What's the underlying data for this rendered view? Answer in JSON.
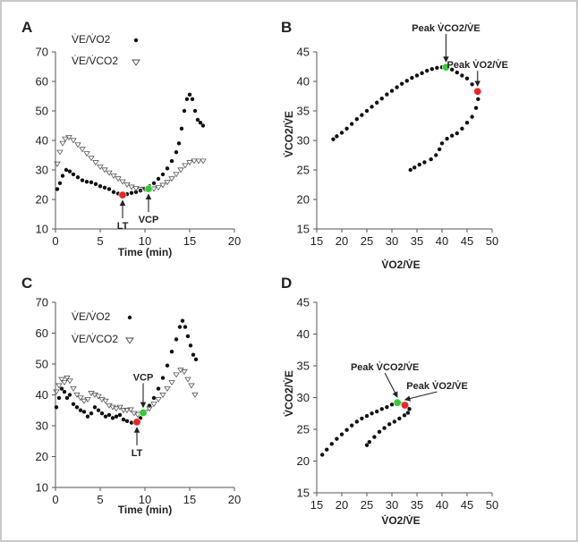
{
  "chart_data": [
    {
      "panel": "A",
      "type": "scatter",
      "xlabel": "Time (min)",
      "ylabel": "",
      "xlim": [
        0,
        20
      ],
      "ylim": [
        10,
        70
      ],
      "xticks": [
        0,
        5,
        10,
        15,
        20
      ],
      "yticks": [
        10,
        20,
        30,
        40,
        50,
        60,
        70
      ],
      "legend": [
        "V̇E/V̇O2",
        "V̇E/V̇CO2"
      ],
      "series": [
        {
          "name": "V̇E/V̇O2",
          "marker": "dot",
          "points": [
            [
              0.2,
              23.5
            ],
            [
              0.5,
              25.5
            ],
            [
              0.8,
              28
            ],
            [
              1.2,
              30
            ],
            [
              1.6,
              29.5
            ],
            [
              2,
              28.5
            ],
            [
              2.5,
              27.5
            ],
            [
              3,
              26.5
            ],
            [
              3.5,
              26
            ],
            [
              4,
              25.8
            ],
            [
              4.5,
              25.2
            ],
            [
              5,
              24.5
            ],
            [
              5.5,
              24
            ],
            [
              6,
              23.5
            ],
            [
              6.5,
              22.5
            ],
            [
              7,
              22
            ],
            [
              7.5,
              21.5
            ],
            [
              8,
              21.8
            ],
            [
              8.5,
              22.2
            ],
            [
              9,
              22.5
            ],
            [
              9.5,
              23
            ],
            [
              10,
              23.6
            ],
            [
              10.5,
              24.5
            ],
            [
              11,
              25.5
            ],
            [
              11.5,
              27
            ],
            [
              12,
              28.5
            ],
            [
              12.5,
              30.5
            ],
            [
              13,
              33
            ],
            [
              13.5,
              36
            ],
            [
              13.8,
              39
            ],
            [
              14.1,
              44
            ],
            [
              14.4,
              50
            ],
            [
              14.7,
              54
            ],
            [
              15,
              55.5
            ],
            [
              15.3,
              54
            ],
            [
              15.6,
              50
            ],
            [
              15.9,
              47
            ],
            [
              16.2,
              46
            ],
            [
              16.5,
              45
            ]
          ]
        },
        {
          "name": "V̇E/V̇CO2",
          "marker": "triangle",
          "points": [
            [
              0.2,
              32
            ],
            [
              0.5,
              36
            ],
            [
              0.8,
              39
            ],
            [
              1.1,
              40.5
            ],
            [
              1.5,
              41
            ],
            [
              2,
              40
            ],
            [
              2.5,
              38.5
            ],
            [
              3,
              37
            ],
            [
              3.5,
              35.5
            ],
            [
              4,
              34
            ],
            [
              4.5,
              32.5
            ],
            [
              5,
              31
            ],
            [
              5.5,
              30
            ],
            [
              6,
              29
            ],
            [
              6.5,
              28
            ],
            [
              7,
              27
            ],
            [
              7.5,
              26
            ],
            [
              8,
              25
            ],
            [
              8.5,
              24.2
            ],
            [
              9,
              23.7
            ],
            [
              9.5,
              23.4
            ],
            [
              10,
              23.5
            ],
            [
              10.5,
              23.3
            ],
            [
              11,
              23.6
            ],
            [
              11.5,
              24
            ],
            [
              12,
              24.8
            ],
            [
              12.5,
              25.8
            ],
            [
              13,
              27
            ],
            [
              13.5,
              28.5
            ],
            [
              14,
              30
            ],
            [
              14.5,
              31.5
            ],
            [
              15,
              32.5
            ],
            [
              15.5,
              33
            ],
            [
              16,
              33
            ],
            [
              16.5,
              33
            ]
          ]
        }
      ],
      "markers": [
        {
          "label": "LT",
          "x": 7.5,
          "y": 21.5,
          "color": "#e8262a"
        },
        {
          "label": "VCP",
          "x": 10.4,
          "y": 23.6,
          "color": "#33cc33"
        }
      ]
    },
    {
      "panel": "B",
      "type": "scatter",
      "xlabel": "V̇O2/V̇E",
      "ylabel": "V̇CO2/V̇E",
      "xlim": [
        15,
        50
      ],
      "ylim": [
        15,
        45
      ],
      "xticks": [
        15,
        20,
        25,
        30,
        35,
        40,
        45,
        50
      ],
      "yticks": [
        15,
        20,
        25,
        30,
        35,
        40,
        45
      ],
      "series": [
        {
          "name": "",
          "marker": "dot",
          "points": [
            [
              18.3,
              30.2
            ],
            [
              19,
              30.7
            ],
            [
              20,
              31.3
            ],
            [
              21,
              32
            ],
            [
              22,
              32.8
            ],
            [
              23,
              33.6
            ],
            [
              24,
              34.3
            ],
            [
              25,
              35
            ],
            [
              26,
              35.7
            ],
            [
              27,
              36.4
            ],
            [
              28,
              37.1
            ],
            [
              29,
              37.8
            ],
            [
              30,
              38.4
            ],
            [
              31,
              39
            ],
            [
              32,
              39.6
            ],
            [
              33,
              40.1
            ],
            [
              34,
              40.6
            ],
            [
              35,
              41
            ],
            [
              36,
              41.4
            ],
            [
              37,
              41.8
            ],
            [
              38,
              42.1
            ],
            [
              39,
              42.3
            ],
            [
              40,
              42.4
            ],
            [
              41,
              42.3
            ],
            [
              42,
              42
            ],
            [
              43,
              41.5
            ],
            [
              44,
              41
            ],
            [
              45,
              40.5
            ],
            [
              46,
              39.5
            ],
            [
              46.8,
              38.5
            ],
            [
              47.2,
              37
            ],
            [
              46.8,
              35.5
            ],
            [
              46,
              34
            ],
            [
              45,
              33
            ],
            [
              44,
              32
            ],
            [
              43,
              31.2
            ],
            [
              42,
              30.8
            ],
            [
              41,
              30.3
            ],
            [
              40,
              29.5
            ],
            [
              39.5,
              28.5
            ],
            [
              38.8,
              27.5
            ],
            [
              37.8,
              26.8
            ],
            [
              36.5,
              26.3
            ],
            [
              35.5,
              25.9
            ],
            [
              34.5,
              25.4
            ],
            [
              33.7,
              25
            ]
          ]
        }
      ],
      "markers": [
        {
          "label": "Peak V̇CO2/V̇E",
          "x": 40.8,
          "y": 42.4,
          "color": "#33cc33"
        },
        {
          "label": "Peak V̇O2/V̇E",
          "x": 47.1,
          "y": 38.3,
          "color": "#e8262a"
        }
      ]
    },
    {
      "panel": "C",
      "type": "scatter",
      "xlabel": "Time (min)",
      "ylabel": "",
      "xlim": [
        0,
        20
      ],
      "ylim": [
        10,
        70
      ],
      "xticks": [
        0,
        5,
        10,
        15,
        20
      ],
      "yticks": [
        10,
        20,
        30,
        40,
        50,
        60,
        70
      ],
      "legend": [
        "V̇E/V̇O2",
        "V̇E/V̇CO2"
      ],
      "series": [
        {
          "name": "V̇E/V̇O2",
          "marker": "dot",
          "points": [
            [
              0.1,
              36
            ],
            [
              0.4,
              39
            ],
            [
              0.7,
              42
            ],
            [
              1,
              41
            ],
            [
              1.3,
              39
            ],
            [
              1.6,
              40
            ],
            [
              2,
              37
            ],
            [
              2.4,
              36
            ],
            [
              2.8,
              35
            ],
            [
              3.2,
              34.5
            ],
            [
              3.6,
              33
            ],
            [
              4,
              34
            ],
            [
              4.4,
              36
            ],
            [
              4.8,
              35
            ],
            [
              5.2,
              34
            ],
            [
              5.6,
              33
            ],
            [
              6,
              33.5
            ],
            [
              6.4,
              32.5
            ],
            [
              6.8,
              33
            ],
            [
              7.2,
              33.5
            ],
            [
              7.6,
              32
            ],
            [
              8,
              31.5
            ],
            [
              8.5,
              31
            ],
            [
              9,
              31.2
            ],
            [
              9.5,
              32.5
            ],
            [
              10,
              34
            ],
            [
              10.5,
              36.5
            ],
            [
              11,
              39
            ],
            [
              11.5,
              42
            ],
            [
              12,
              45.5
            ],
            [
              12.5,
              49.5
            ],
            [
              13,
              54
            ],
            [
              13.5,
              58
            ],
            [
              13.9,
              62
            ],
            [
              14.2,
              64
            ],
            [
              14.5,
              62
            ],
            [
              14.8,
              59
            ],
            [
              15.1,
              56
            ],
            [
              15.4,
              53
            ],
            [
              15.7,
              51.5
            ]
          ]
        },
        {
          "name": "V̇E/V̇CO2",
          "marker": "triangle",
          "points": [
            [
              0.1,
              41
            ],
            [
              0.4,
              43
            ],
            [
              0.7,
              45
            ],
            [
              1,
              44
            ],
            [
              1.3,
              45.5
            ],
            [
              1.6,
              44.5
            ],
            [
              2,
              42
            ],
            [
              2.4,
              40
            ],
            [
              2.8,
              39
            ],
            [
              3.2,
              38
            ],
            [
              3.6,
              38.5
            ],
            [
              4,
              40.5
            ],
            [
              4.4,
              40
            ],
            [
              4.8,
              39.5
            ],
            [
              5.2,
              38.5
            ],
            [
              5.6,
              38
            ],
            [
              6,
              36.5
            ],
            [
              6.4,
              36
            ],
            [
              6.8,
              35.5
            ],
            [
              7.2,
              36
            ],
            [
              7.6,
              35
            ],
            [
              8,
              35
            ],
            [
              8.4,
              35.2
            ],
            [
              8.8,
              34
            ],
            [
              9.2,
              33.5
            ],
            [
              9.6,
              34
            ],
            [
              10,
              34.5
            ],
            [
              10.5,
              35.5
            ],
            [
              11,
              37
            ],
            [
              11.5,
              38.5
            ],
            [
              12,
              40
            ],
            [
              12.5,
              42
            ],
            [
              13,
              44
            ],
            [
              13.5,
              46.5
            ],
            [
              14,
              48
            ],
            [
              14.4,
              47.5
            ],
            [
              14.8,
              45
            ],
            [
              15.2,
              43
            ],
            [
              15.6,
              40
            ]
          ]
        }
      ],
      "markers": [
        {
          "label": "LT",
          "x": 9.1,
          "y": 31.2,
          "color": "#e8262a"
        },
        {
          "label": "VCP",
          "x": 9.8,
          "y": 34.2,
          "color": "#33cc33"
        }
      ]
    },
    {
      "panel": "D",
      "type": "scatter",
      "xlabel": "V̇O2/V̇E",
      "ylabel": "V̇CO2/V̇E",
      "xlim": [
        15,
        50
      ],
      "ylim": [
        15,
        45
      ],
      "xticks": [
        15,
        20,
        25,
        30,
        35,
        40,
        45,
        50
      ],
      "yticks": [
        15,
        20,
        25,
        30,
        35,
        40,
        45
      ],
      "series": [
        {
          "name": "",
          "marker": "dot",
          "points": [
            [
              16.1,
              21
            ],
            [
              17,
              21.8
            ],
            [
              18,
              22.7
            ],
            [
              19,
              23.5
            ],
            [
              20,
              24.2
            ],
            [
              21,
              24.9
            ],
            [
              22,
              25.6
            ],
            [
              23,
              26.2
            ],
            [
              24,
              26.7
            ],
            [
              25,
              27.1
            ],
            [
              26,
              27.5
            ],
            [
              27,
              27.8
            ],
            [
              28,
              28.2
            ],
            [
              29,
              28.5
            ],
            [
              30,
              28.9
            ],
            [
              31,
              29.2
            ],
            [
              32,
              29
            ],
            [
              33,
              28.6
            ],
            [
              33.5,
              28.2
            ],
            [
              33.2,
              27.6
            ],
            [
              32.5,
              27.2
            ],
            [
              31.5,
              26.7
            ],
            [
              30.5,
              26.2
            ],
            [
              29.5,
              25.8
            ],
            [
              28.5,
              25.2
            ],
            [
              27.5,
              24.6
            ],
            [
              26.5,
              23.8
            ],
            [
              25.5,
              23
            ],
            [
              25,
              22.5
            ]
          ]
        }
      ],
      "markers": [
        {
          "label": "Peak V̇CO2/V̇E",
          "x": 31.1,
          "y": 29.2,
          "color": "#33cc33"
        },
        {
          "label": "Peak V̇O2/V̇E",
          "x": 32.6,
          "y": 28.8,
          "color": "#e8262a"
        }
      ]
    }
  ],
  "panel_letters": {
    "a": "A",
    "b": "B",
    "c": "C",
    "d": "D"
  },
  "text": {
    "time_label": "Time (min)",
    "legend_o2": "V̇E/V̇O2",
    "legend_co2": "V̇E/V̇CO2",
    "lt": "LT",
    "vcp": "VCP",
    "peak_co2": "Peak V̇CO2/V̇E",
    "peak_o2": "Peak V̇O2/V̇E",
    "x_ratio": "V̇O2/V̇E",
    "y_ratio": "V̇CO2/V̇E"
  }
}
